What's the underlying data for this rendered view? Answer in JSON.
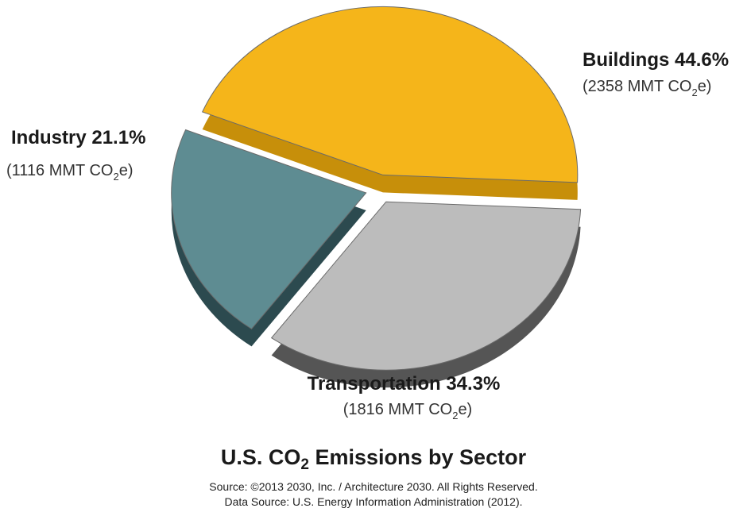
{
  "chart_data": {
    "type": "pie",
    "title_prefix": "U.S. CO",
    "title_sub": "2",
    "title_suffix": " Emissions by Sector",
    "slices": [
      {
        "name": "Buildings",
        "percent": 44.6,
        "percent_label": "44.6%",
        "value": 2358,
        "value_prefix": "(2358 MMT CO",
        "value_sub": "2",
        "value_suffix": "e)",
        "color": "#f5b51a",
        "side_color": "#c78f0a"
      },
      {
        "name": "Transportation",
        "percent": 34.3,
        "percent_label": "34.3%",
        "value": 1816,
        "value_prefix": "(1816 MMT CO",
        "value_sub": "2",
        "value_suffix": "e)",
        "color": "#bcbcbc",
        "side_color": "#555555"
      },
      {
        "name": "Industry",
        "percent": 21.1,
        "percent_label": "21.1%",
        "value": 1116,
        "value_prefix": "(1116 MMT CO",
        "value_sub": "2",
        "value_suffix": "e)",
        "color": "#5e8c92",
        "side_color": "#2c4a4f"
      }
    ],
    "exploded": true,
    "source_line_1": "Source: ©2013 2030, Inc. / Architecture 2030. All Rights Reserved.",
    "source_line_2": "Data Source: U.S. Energy Information Administration (2012)."
  }
}
